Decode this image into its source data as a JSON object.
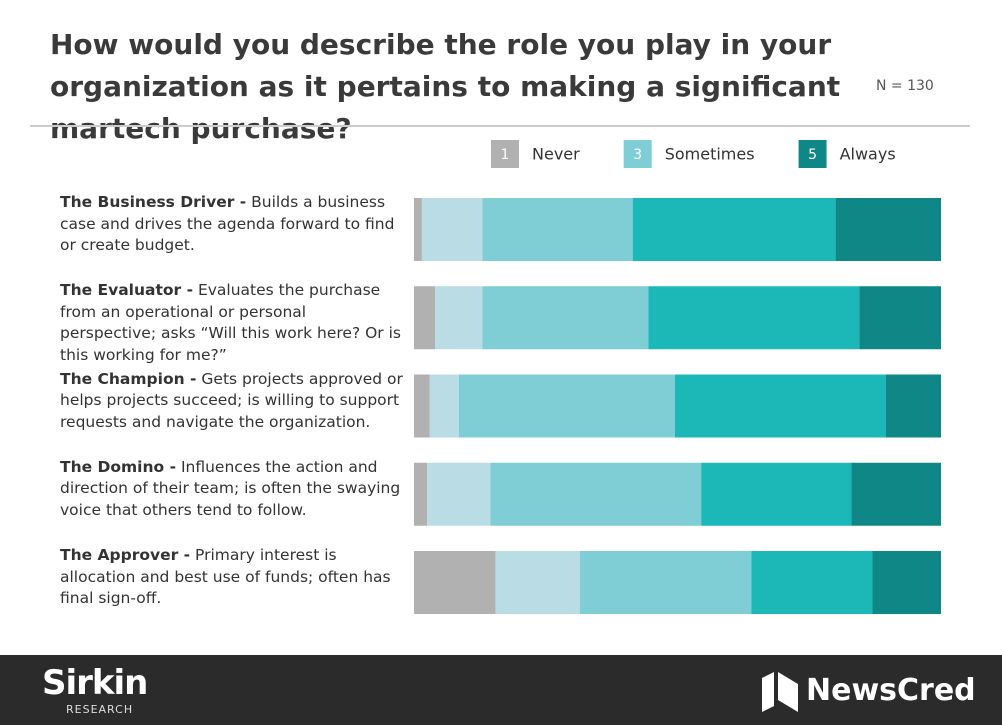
{
  "chart_data": {
    "type": "stacked-bar",
    "title": "How would you describe the role you play in your organization as it pertains to making a significant martech purchase?",
    "note": "N = 130",
    "categories": [
      {
        "role": "The Business Driver -",
        "description": "Builds a business case and drives the agenda forward to find or create budget."
      },
      {
        "role": "The Evaluator -",
        "description": "Evaluates the purchase from an operational or personal perspective; asks “Will this work here? Or is this working for me?”"
      },
      {
        "role": "The Champion -",
        "description": "Gets projects approved or helps projects succeed; is willing to support requests and navigate the organization."
      },
      {
        "role": "The Domino -",
        "description": "Influences the action and direction of their team; is often the swaying voice that others tend to follow."
      },
      {
        "role": "The Approver -",
        "description": "Primary interest is allocation and best use of funds; often has final sign-off."
      }
    ],
    "series": [
      {
        "badge": "1",
        "name": "Never",
        "color": "#b1b1b1",
        "values": [
          1.5,
          4,
          3,
          2.5,
          15.5
        ]
      },
      {
        "color": "#b9dce5",
        "values": [
          11.5,
          9,
          5.5,
          12,
          16
        ]
      },
      {
        "badge": "3",
        "name": "Sometimes",
        "color": "#7fcdd5",
        "values": [
          28.5,
          31.5,
          41,
          40,
          32.5
        ]
      },
      {
        "color": "#1cb8b8",
        "values": [
          38.5,
          40,
          40,
          28.5,
          23
        ]
      },
      {
        "badge": "5",
        "name": "Always",
        "color": "#0f8787",
        "values": [
          20,
          15.5,
          10.5,
          17,
          13
        ]
      }
    ]
  },
  "footer": {
    "left_logo": "Sirkin",
    "left_logo_sub": "RESEARCH",
    "right_logo": "NewsCred"
  }
}
